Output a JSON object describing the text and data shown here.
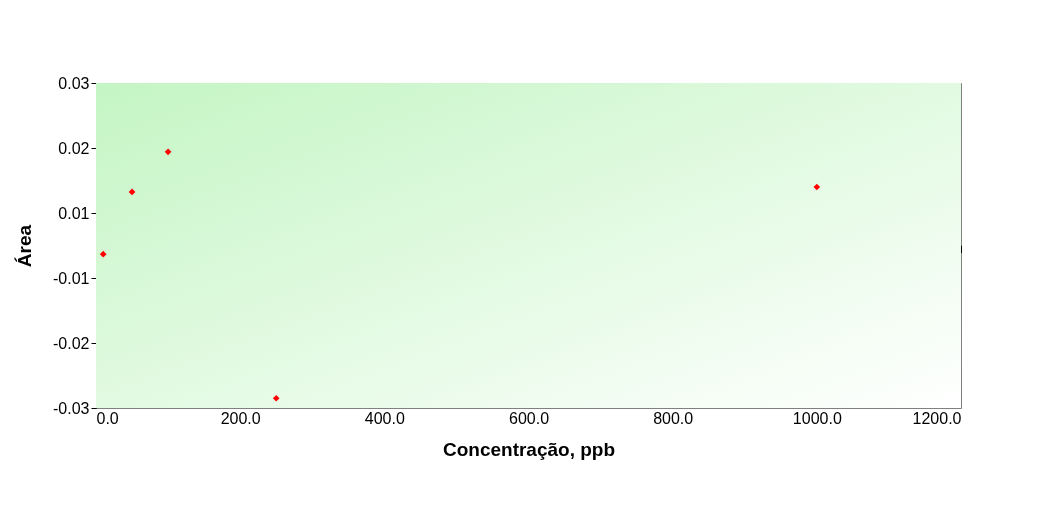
{
  "chart_data": {
    "type": "scatter",
    "xlabel": "Concentração, ppb",
    "ylabel": "Área",
    "x": [
      10,
      50,
      100,
      250,
      1000
    ],
    "series": [
      {
        "color": "#ff0000",
        "values": [
          -0.0016,
          0.0099,
          0.0173,
          -0.0282,
          0.0108
        ]
      }
    ],
    "marker": "diamond",
    "grid": false,
    "legend": false,
    "xlim": [
      0,
      1200
    ],
    "xticks": [
      {
        "value": 0,
        "label": "0.0"
      },
      {
        "value": 200,
        "label": "200.0"
      },
      {
        "value": 400,
        "label": "400.0"
      },
      {
        "value": 600,
        "label": "600.0"
      },
      {
        "value": 800,
        "label": "800.0"
      },
      {
        "value": 1000,
        "label": "1000.0"
      },
      {
        "value": 1200,
        "label": "1200.0"
      }
    ],
    "ylim": [
      -0.03,
      0.03
    ],
    "yticks": [
      {
        "value": 0.03,
        "label": "0.03"
      },
      {
        "value": 0.018,
        "label": "0.02"
      },
      {
        "value": 0.006,
        "label": "0.01"
      },
      {
        "value": -0.006,
        "label": "-0.01"
      },
      {
        "value": -0.018,
        "label": "-0.02"
      },
      {
        "value": -0.03,
        "label": "-0.03"
      }
    ]
  }
}
